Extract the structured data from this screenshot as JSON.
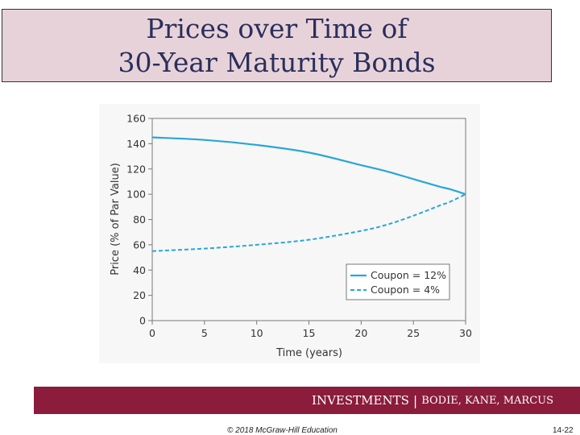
{
  "slide": {
    "title_line1": "Prices over Time of",
    "title_line2": "30-Year Maturity Bonds",
    "banner_main": "INVESTMENTS",
    "banner_sep": "|",
    "banner_authors": "BODIE, KANE, MARCUS",
    "copyright": "© 2018 McGraw-Hill Education",
    "page_number": "14-22"
  },
  "colors": {
    "title_bg": "#e8d2d9",
    "title_text": "#2a2f5c",
    "banner_bg": "#8b1c3b",
    "series": "#29a6d8"
  },
  "chart_data": {
    "type": "line",
    "xlabel": "Time (years)",
    "ylabel": "Price (% of Par Value)",
    "xlim": [
      0,
      30
    ],
    "ylim": [
      0,
      160
    ],
    "xticks": [
      "0",
      "5",
      "10",
      "15",
      "20",
      "25",
      "30"
    ],
    "yticks": [
      "0",
      "20",
      "40",
      "60",
      "80",
      "100",
      "120",
      "140",
      "160"
    ],
    "grid": false,
    "legend_position": "bottom-right",
    "series": [
      {
        "name": "Coupon = 12%",
        "style": "solid",
        "x": [
          0,
          5,
          10,
          15,
          20,
          22.5,
          25,
          27.5,
          28.5,
          30
        ],
        "y": [
          145,
          143,
          139,
          133,
          123,
          118,
          112,
          106,
          104,
          100
        ]
      },
      {
        "name": "Coupon = 4%",
        "style": "dashed",
        "x": [
          0,
          5,
          10,
          15,
          20,
          22.5,
          25,
          27.5,
          28.5,
          30
        ],
        "y": [
          55,
          57,
          60,
          64,
          71,
          76,
          83,
          91,
          94,
          100
        ]
      }
    ]
  }
}
